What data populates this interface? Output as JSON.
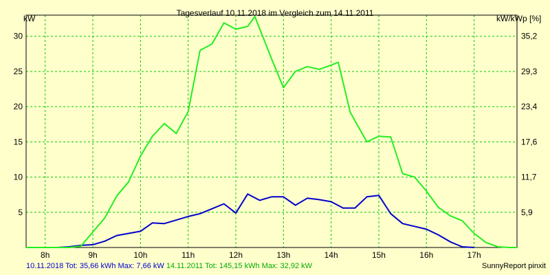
{
  "chart_data": {
    "type": "line",
    "title": "Tagesverlauf 10.11.2018 im Vergleich zum 14.11.2011",
    "ylabel": "kW",
    "ylabel_right": "kW/kWp [%]",
    "ylim": [
      0,
      33
    ],
    "y_ticks": [
      5,
      10,
      15,
      20,
      25,
      30
    ],
    "y_right_ticks": [
      "5,9",
      "11,7",
      "17,6",
      "23,4",
      "29,3",
      "35,2"
    ],
    "x_ticks": [
      8,
      9,
      10,
      11,
      12,
      13,
      14,
      15,
      16,
      17
    ],
    "x_tick_suffix": "h",
    "xlim": [
      7.6,
      17.9
    ],
    "grid": true,
    "colors": {
      "background": "#ffffcc",
      "grid": "#00cc00",
      "series1": "#0000cc",
      "series2": "#22ee22"
    },
    "series": [
      {
        "name": "10.11.2018",
        "x": [
          7.6,
          8.25,
          8.5,
          8.75,
          9.0,
          9.25,
          9.5,
          9.75,
          10.0,
          10.25,
          10.5,
          10.75,
          11.0,
          11.25,
          11.5,
          11.75,
          12.0,
          12.25,
          12.5,
          12.75,
          13.0,
          13.25,
          13.5,
          13.75,
          14.0,
          14.25,
          14.5,
          14.75,
          15.0,
          15.25,
          15.5,
          15.75,
          16.0,
          16.25,
          16.5,
          16.75,
          17.0
        ],
        "values": [
          0,
          0,
          0.1,
          0.3,
          0.4,
          0.9,
          1.7,
          2.0,
          2.3,
          3.5,
          3.4,
          3.9,
          4.4,
          4.8,
          5.5,
          6.2,
          4.9,
          7.6,
          6.7,
          7.2,
          7.2,
          6.0,
          7.0,
          6.8,
          6.5,
          5.6,
          5.6,
          7.2,
          7.4,
          4.8,
          3.4,
          3.0,
          2.6,
          1.8,
          0.8,
          0.1,
          0
        ]
      },
      {
        "name": "14.11.2011",
        "x": [
          7.6,
          8.5,
          8.75,
          9.0,
          9.25,
          9.5,
          9.75,
          10.0,
          10.25,
          10.5,
          10.75,
          11.0,
          11.25,
          11.5,
          11.75,
          12.0,
          12.25,
          12.4,
          12.75,
          13.0,
          13.25,
          13.5,
          13.75,
          14.0,
          14.15,
          14.4,
          14.75,
          15.0,
          15.25,
          15.5,
          15.75,
          16.0,
          16.25,
          16.5,
          16.75,
          17.0,
          17.25,
          17.5,
          17.75,
          17.9
        ],
        "values": [
          0,
          0,
          0.2,
          2.2,
          4.2,
          7.3,
          9.3,
          13.0,
          15.8,
          17.6,
          16.2,
          19.3,
          28.0,
          28.9,
          31.9,
          31.0,
          31.4,
          32.8,
          26.8,
          22.7,
          25.0,
          25.7,
          25.3,
          25.9,
          26.3,
          19.2,
          15.0,
          15.8,
          15.7,
          10.5,
          10.0,
          8.0,
          5.7,
          4.5,
          3.8,
          2.0,
          0.7,
          0.1,
          0,
          0
        ]
      }
    ],
    "footer": {
      "series1_label": "10.11.2018 Tot: 35,66 kWh Max: 7,66 kW",
      "series2_label": "14.11.2011 Tot: 145,15 kWh Max: 32,92 kW"
    },
    "credit": "SunnyReport pinxit"
  }
}
